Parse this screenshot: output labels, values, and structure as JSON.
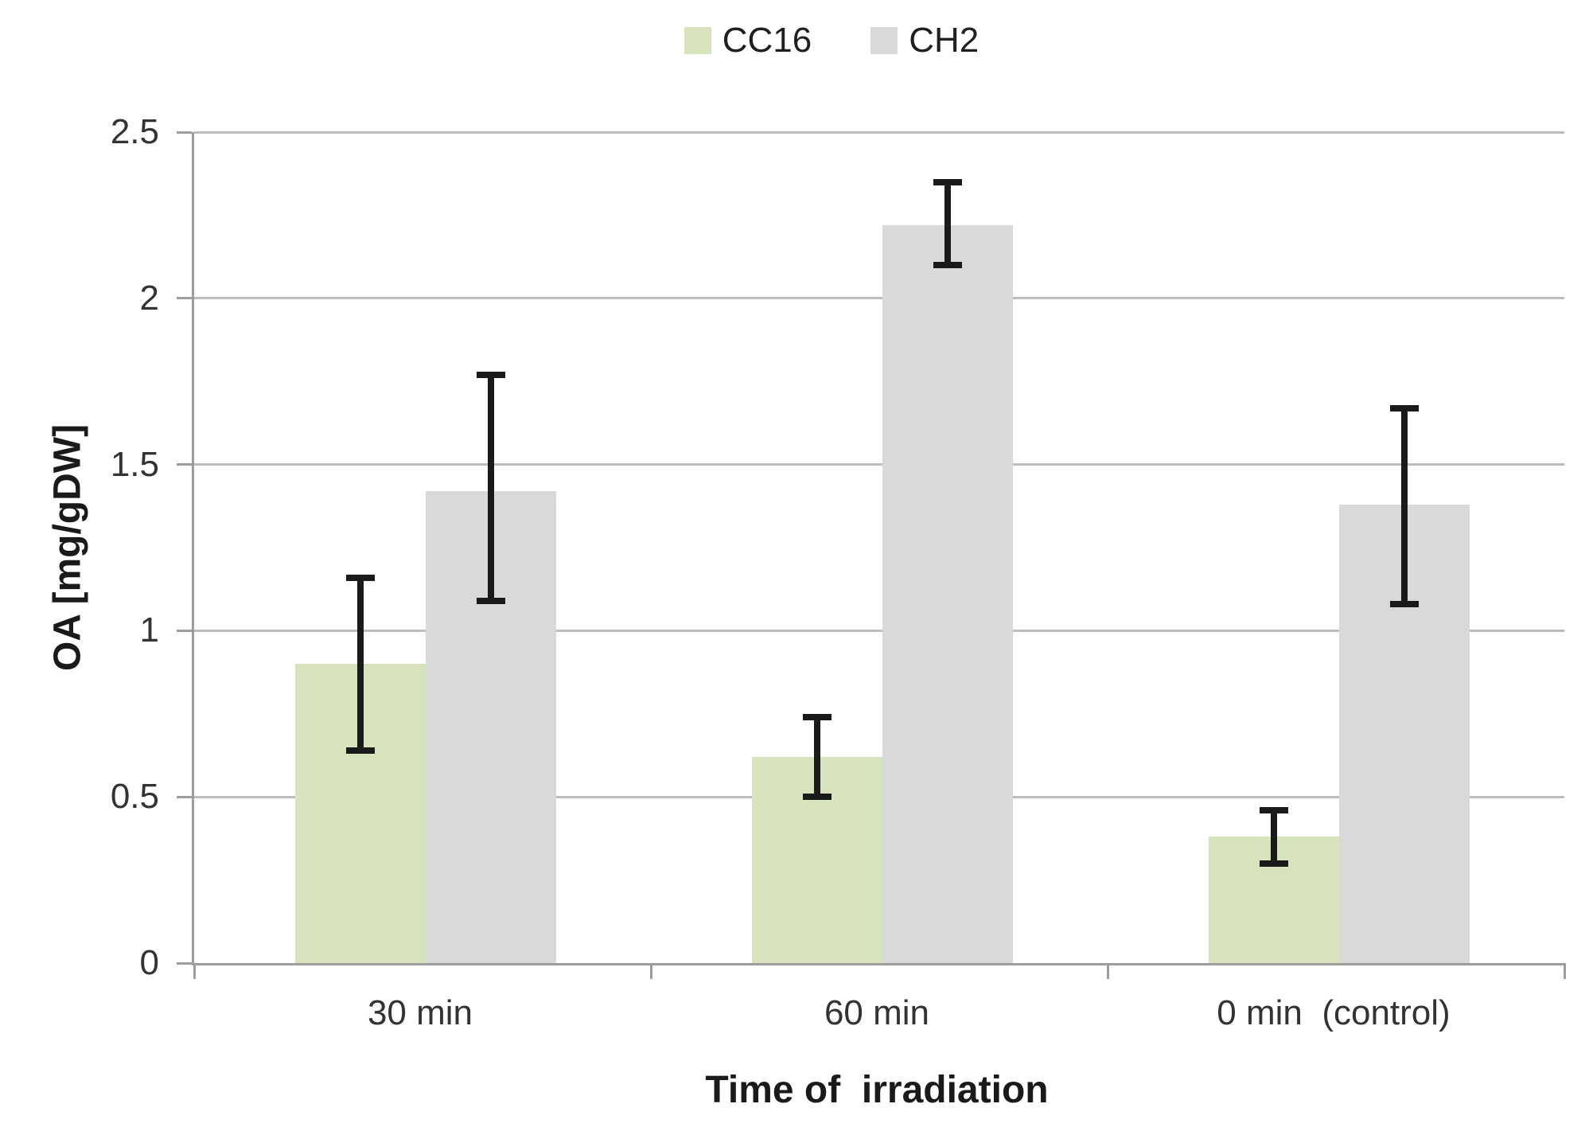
{
  "chart_data": {
    "type": "bar",
    "title": "",
    "categories": [
      "30 min",
      "60 min",
      "0 min  (control)"
    ],
    "series": [
      {
        "name": "CC16",
        "color": "#D6E3BC",
        "values": [
          0.9,
          0.62,
          0.38
        ],
        "error_high": [
          1.16,
          0.74,
          0.46
        ],
        "error_low": [
          0.64,
          0.5,
          0.3
        ]
      },
      {
        "name": "CH2",
        "color": "#D9D9D9",
        "values": [
          1.42,
          2.22,
          1.38
        ],
        "error_high": [
          1.77,
          2.35,
          1.67
        ],
        "error_low": [
          1.09,
          2.1,
          1.08
        ]
      }
    ],
    "xlabel": "Time of  irradiation",
    "ylabel": "OA [mg/gDW]",
    "ylim": [
      0,
      2.5
    ],
    "yticks": [
      0,
      0.5,
      1,
      1.5,
      2,
      2.5
    ],
    "ytick_labels": [
      "0",
      "0.5",
      "1",
      "1.5",
      "2",
      "2.5"
    ],
    "grid": true,
    "legend_position": "top-center",
    "error_bar_color": "#1A1A1A",
    "gridline_color": "#BDBDBD",
    "axis_line_color": "#9D9D9D"
  }
}
